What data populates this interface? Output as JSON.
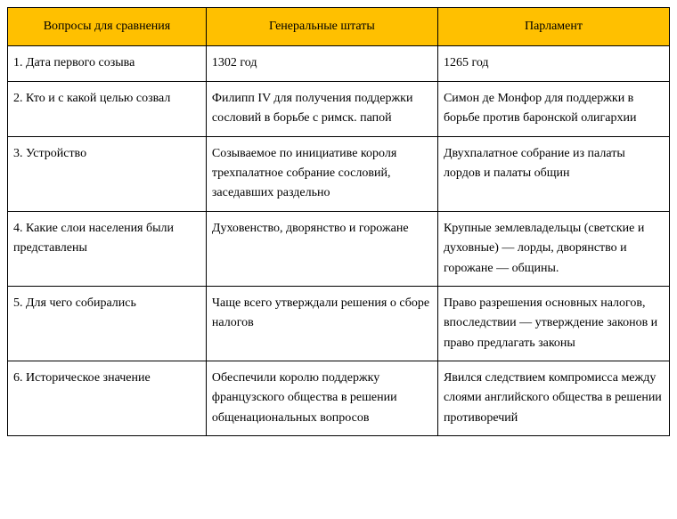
{
  "table": {
    "header_bg": "#FFC000",
    "border_color": "#000000",
    "text_color": "#000000",
    "font_family": "Times New Roman",
    "font_size": 14,
    "columns": [
      "Вопросы для сравнения",
      "Генеральные штаты",
      "Парламент"
    ],
    "rows": [
      {
        "q": "1. Дата первого созыва",
        "a": "1302 год",
        "b": "1265 год"
      },
      {
        "q": "2. Кто и с какой целью созвал",
        "a": "Филипп IV для получения поддержки сословий в борьбе с римск. папой",
        "b": "Симон де Монфор для поддержки в борьбе против баронской олигархии"
      },
      {
        "q": "3. Устройство",
        "a": "Созываемое по инициативе короля трехпалатное собрание сословий, заседавших раздельно",
        "b": "Двухпалатное собрание из палаты лордов и палаты общин"
      },
      {
        "q": "4. Какие слои населения были представлены",
        "a": "Духовенство, дворянство и горожане",
        "b": "Крупные землевладельцы (светские и духовные) — лорды, дворянство и горожане — общины."
      },
      {
        "q": "5. Для чего собирались",
        "a": "Чаще всего утверждали решения о сборе налогов",
        "b": "Право разрешения основных налогов, впоследствии — утверждение законов и право предлагать законы"
      },
      {
        "q": "6. Историческое значение",
        "a": "Обеспечили королю поддержку французского общества в решении общенациональных вопросов",
        "b": "Явился следствием компромисса между слоями английского общества в решении противоречий"
      }
    ]
  }
}
